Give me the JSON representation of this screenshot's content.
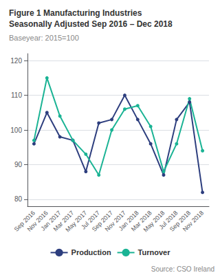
{
  "chart_data": {
    "type": "line",
    "title": "Figure 1 Manufacturing Industries\nSeasonally Adjusted Sep 2016 – Dec 2018",
    "subtitle": "Baseyear: 2015=100",
    "annotations": [
      "Source: CSO Ireland"
    ],
    "categories": [
      "Sep 2016",
      "Nov 2016",
      "Jan 2017",
      "Mar 2017",
      "May 2017",
      "Jul 2017",
      "Sep 2017",
      "Nov 2017",
      "Jan 2018",
      "Mar 2018",
      "May 2018",
      "Jul 2018",
      "Sep 2018",
      "Nov 2018"
    ],
    "series": [
      {
        "name": "Production",
        "color": "#2d3e7e",
        "marker": "circle",
        "values": [
          96,
          105,
          98,
          97,
          88,
          102,
          103,
          110,
          103,
          96,
          87,
          103,
          108,
          82
        ]
      },
      {
        "name": "Turnover",
        "color": "#1ab394",
        "marker": "circle",
        "values": [
          97,
          115,
          104,
          97,
          93,
          87,
          100,
          106,
          107,
          101,
          88,
          96,
          109,
          94
        ]
      }
    ],
    "ylim": [
      78,
      122
    ],
    "yticks": [
      80,
      90,
      100,
      110,
      120
    ],
    "grid": true,
    "legend": "bottom"
  }
}
